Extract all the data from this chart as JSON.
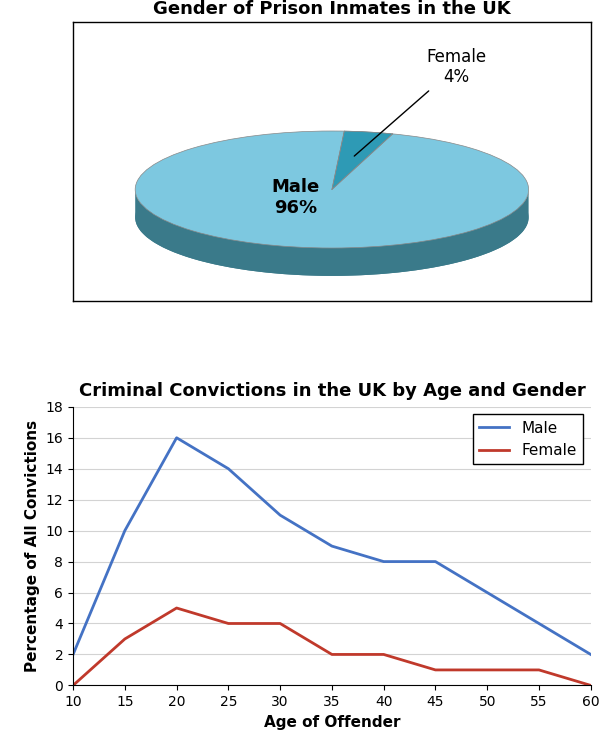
{
  "pie_title": "Gender of Prison Inmates in the UK",
  "pie_values": [
    96,
    4
  ],
  "pie_male_label": "Male\n96%",
  "pie_female_label": "Female\n4%",
  "pie_face_color_main": "#7dc8e0",
  "pie_face_color_female": "#2e9ab5",
  "pie_side_color": "#3a7a8a",
  "line_title": "Criminal Convictions in the UK by Age and Gender",
  "line_xlabel": "Age of Offender",
  "line_ylabel": "Percentage of All Convictions",
  "ages": [
    10,
    15,
    20,
    25,
    30,
    35,
    40,
    45,
    50,
    55,
    60
  ],
  "male_values": [
    2,
    10,
    16,
    14,
    11,
    9,
    8,
    8,
    6,
    4,
    2
  ],
  "female_values": [
    0,
    3,
    5,
    4,
    4,
    2,
    2,
    1,
    1,
    1,
    0
  ],
  "male_color": "#4472c4",
  "female_color": "#c0392b",
  "ylim": [
    0,
    18
  ],
  "yticks": [
    0,
    2,
    4,
    6,
    8,
    10,
    12,
    14,
    16,
    18
  ],
  "xticks": [
    10,
    15,
    20,
    25,
    30,
    35,
    40,
    45,
    50,
    55,
    60
  ],
  "line_width": 2.0,
  "title_fontsize": 13,
  "label_fontsize": 11,
  "tick_fontsize": 10,
  "legend_fontsize": 11
}
